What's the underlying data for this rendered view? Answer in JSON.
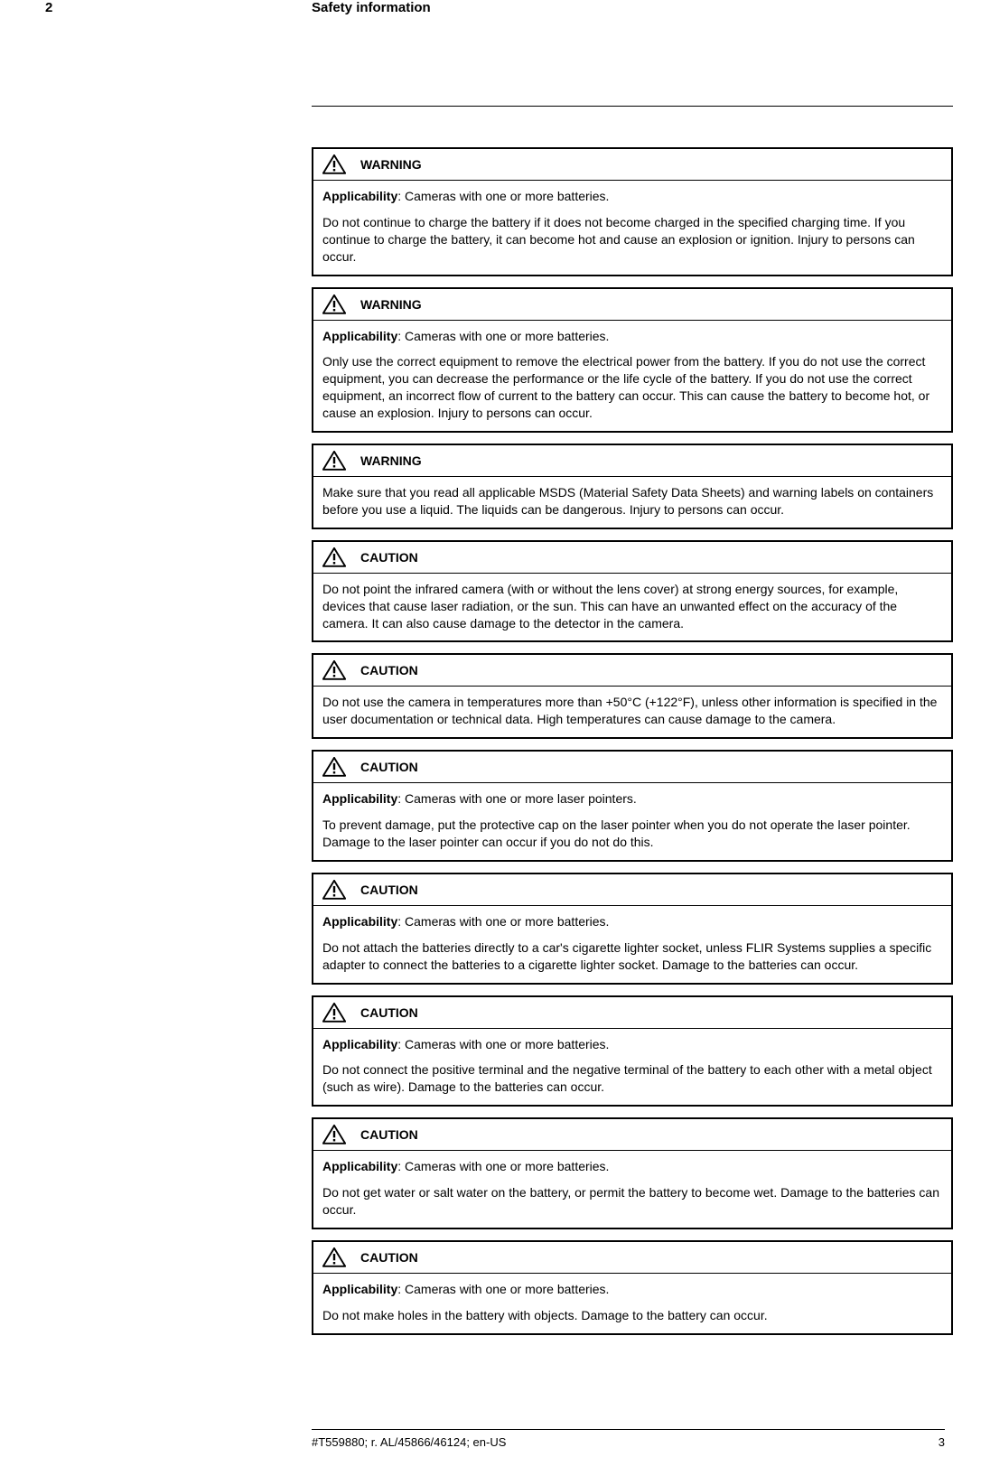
{
  "chapter_number": "2",
  "chapter_title": "Safety information",
  "labels": {
    "warning": "WARNING",
    "caution": "CAUTION"
  },
  "applic_prefix": "Applicability",
  "boxes": [
    {
      "level": "warning",
      "applic": ": Cameras with one or more batteries.",
      "body": "Do not continue to charge the battery if it does not become charged in the specified charging time. If you continue to charge the battery, it can become hot and cause an explosion or ignition. Injury to persons can occur."
    },
    {
      "level": "warning",
      "applic": ": Cameras with one or more batteries.",
      "body": "Only use the correct equipment to remove the electrical power from the battery. If you do not use the correct equipment, you can decrease the performance or the life cycle of the battery. If you do not use the correct equipment, an incorrect flow of current to the battery can occur. This can cause the battery to become hot, or cause an explosion. Injury to persons can occur."
    },
    {
      "level": "warning",
      "applic": null,
      "body": "Make sure that you read all applicable MSDS (Material Safety Data Sheets) and warning labels on containers before you use a liquid. The liquids can be dangerous. Injury to persons can occur."
    },
    {
      "level": "caution",
      "applic": null,
      "body": "Do not point the infrared camera (with or without the lens cover) at strong energy sources, for example, devices that cause laser radiation, or the sun. This can have an unwanted effect on the accuracy of the camera. It can also cause damage to the detector in the camera."
    },
    {
      "level": "caution",
      "applic": null,
      "body": "Do not use the camera in temperatures more than +50°C (+122°F), unless other information is specified in the user documentation or technical data. High temperatures can cause damage to the camera."
    },
    {
      "level": "caution",
      "applic": ": Cameras with one or more laser pointers.",
      "body": "To prevent damage, put the protective cap on the laser pointer when you do not operate the laser pointer. Damage to the laser pointer can occur if you do not do this."
    },
    {
      "level": "caution",
      "applic": ": Cameras with one or more batteries.",
      "body": "Do not attach the batteries directly to a car's cigarette lighter socket, unless FLIR Systems supplies a specific adapter to connect the batteries to a cigarette lighter socket. Damage to the batteries can occur."
    },
    {
      "level": "caution",
      "applic": ": Cameras with one or more batteries.",
      "body": "Do not connect the positive terminal and the negative terminal of the battery to each other with a metal object (such as wire). Damage to the batteries can occur."
    },
    {
      "level": "caution",
      "applic": ": Cameras with one or more batteries.",
      "body": "Do not get water or salt water on the battery, or permit the battery to become wet. Damage to the batteries can occur."
    },
    {
      "level": "caution",
      "applic": ": Cameras with one or more batteries.",
      "body": "Do not make holes in the battery with objects. Damage to the battery can occur."
    }
  ],
  "footer": {
    "docid": "#T559880; r. AL/45866/46124; en-US",
    "page": "3"
  },
  "colors": {
    "text": "#000000",
    "bg": "#ffffff",
    "border": "#000000"
  }
}
